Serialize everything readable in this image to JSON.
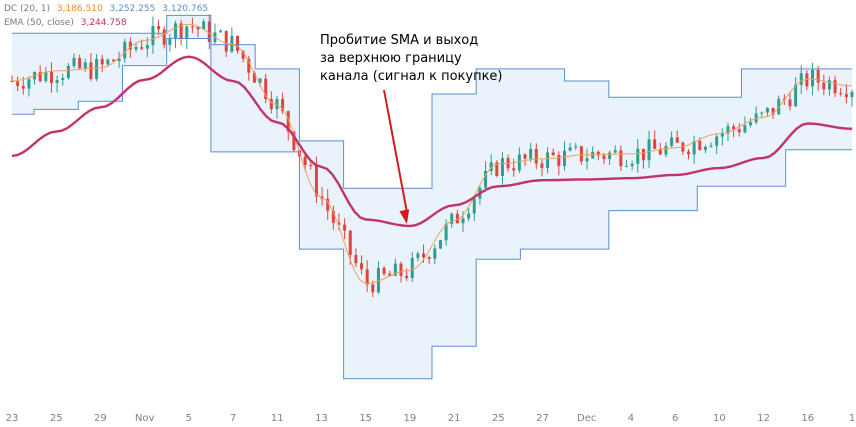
{
  "legend": {
    "dc_label": "DC (20, 1)",
    "dc_middle": "3,186.510",
    "dc_upper": "3,252.255",
    "dc_lower": "3,120.765",
    "ema_label": "EMA (50, close)",
    "ema_value": "3,244.758"
  },
  "annotation": {
    "lines": [
      "Пробитие SMA и выход",
      "за верхнюю границу",
      "канала (сигнал к покупке)"
    ]
  },
  "colors": {
    "dc_upper_lower": "#5b8fd0",
    "dc_middle": "#f0a060",
    "dc_fill": "#eaf2fb",
    "ema": "#c2336a",
    "up": "#2e9e8e",
    "down": "#e0443c",
    "arrow": "#d01c1c",
    "legend_dc_middle": "#f08a30",
    "legend_dc_upper": "#5b8fd0",
    "legend_dc_lower": "#5b8fd0",
    "legend_ema": "#c2336a"
  },
  "chart_data": {
    "type": "line",
    "title": "",
    "x_tick_labels": [
      "23",
      "25",
      "29",
      "Nov",
      "5",
      "7",
      "11",
      "13",
      "15",
      "19",
      "21",
      "25",
      "27",
      "Dec",
      "4",
      "6",
      "10",
      "12",
      "16",
      "1"
    ],
    "x": [
      "23",
      "25",
      "29",
      "Nov",
      "5",
      "7",
      "11",
      "13",
      "15",
      "19",
      "21",
      "25",
      "27",
      "Dec",
      "4",
      "6",
      "10",
      "12",
      "16",
      "1"
    ],
    "ylim": [
      2400,
      3400
    ],
    "series": [
      {
        "name": "DC upper",
        "values": [
          3318,
          3318,
          3318,
          3318,
          3362,
          3290,
          3230,
          3052,
          2935,
          2935,
          3168,
          3230,
          3230,
          3200,
          3160,
          3160,
          3160,
          3230,
          3230,
          3230
        ]
      },
      {
        "name": "DC middle",
        "values": [
          3200,
          3225,
          3232,
          3300,
          3340,
          3290,
          3140,
          2912,
          2700,
          2732,
          2855,
          2995,
          3008,
          3018,
          3020,
          3035,
          3070,
          3110,
          3205,
          3188
        ]
      },
      {
        "name": "DC lower",
        "values": [
          3118,
          3130,
          3150,
          3238,
          3305,
          3025,
          3025,
          2785,
          2465,
          2465,
          2545,
          2760,
          2785,
          2785,
          2880,
          2880,
          2940,
          2940,
          3030,
          3030
        ]
      },
      {
        "name": "EMA",
        "values": [
          3015,
          3075,
          3135,
          3203,
          3260,
          3200,
          3098,
          2988,
          2858,
          2842,
          2893,
          2940,
          2955,
          2957,
          2960,
          2968,
          2985,
          3010,
          3095,
          3082
        ]
      }
    ]
  }
}
